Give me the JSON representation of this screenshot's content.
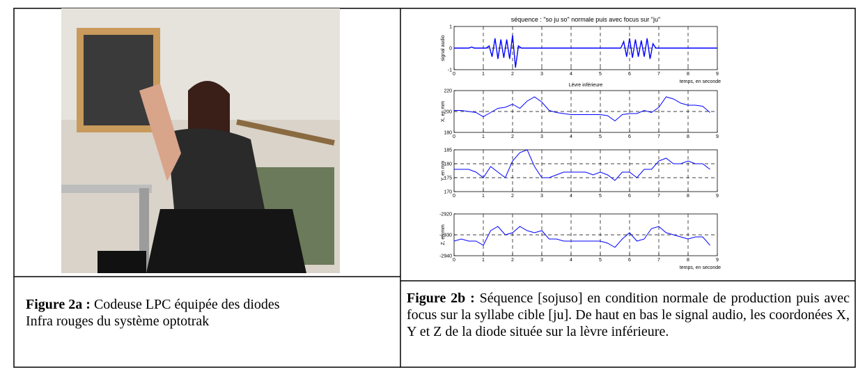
{
  "figure_2a": {
    "label": "Figure 2a :",
    "text_lines": [
      "Codeuse LPC  équipée des diodes",
      "Infra rouges du système optotrak"
    ]
  },
  "figure_2b": {
    "label": "Figure 2b :",
    "text": "Séquence [sojuso] en condition normale de production puis avec focus sur la syllabe cible [ju]. De haut en bas le signal audio, les coordonées X, Y et Z de la diode située sur la lèvre inférieure.",
    "title": "séquence : \"so ju so\" normale puis avec focus sur \"ju\"",
    "x": [
      0,
      0.25,
      0.5,
      0.75,
      1,
      1.25,
      1.5,
      1.75,
      2,
      2.25,
      2.5,
      2.75,
      3,
      3.25,
      3.5,
      3.75,
      4,
      4.25,
      4.5,
      4.75,
      5,
      5.25,
      5.5,
      5.75,
      6,
      6.25,
      6.5,
      6.75,
      7,
      7.25,
      7.5,
      7.75,
      8,
      8.25,
      8.5,
      8.75
    ],
    "subplots": [
      {
        "ylabel": "signal audio",
        "xlabel": "temps, en seconde",
        "xlim": [
          0,
          9
        ],
        "xticks": [
          0,
          1,
          2,
          3,
          4,
          5,
          6,
          7,
          8,
          9
        ],
        "ylim": [
          -1,
          1
        ],
        "yticks": [
          -1,
          0,
          1
        ],
        "grid": true,
        "color": "#0000ff",
        "x": [
          0,
          0.1,
          0.2,
          0.3,
          0.4,
          0.5,
          0.6,
          0.7,
          0.8,
          0.9,
          1,
          1.1,
          1.2,
          1.3,
          1.4,
          1.5,
          1.6,
          1.7,
          1.8,
          1.9,
          2,
          2.1,
          2.2,
          2.3,
          2.4,
          2.5,
          2.6,
          2.7,
          2.8,
          2.9,
          3,
          3.1,
          3.2,
          3.3,
          3.4,
          3.5,
          3.6,
          3.7,
          3.8,
          3.9,
          4,
          4.1,
          4.2,
          4.3,
          4.4,
          4.5,
          4.6,
          4.7,
          4.8,
          4.9,
          5,
          5.1,
          5.2,
          5.3,
          5.4,
          5.5,
          5.6,
          5.7,
          5.8,
          5.9,
          6,
          6.1,
          6.2,
          6.3,
          6.4,
          6.5,
          6.6,
          6.7,
          6.8,
          6.9,
          7,
          7.1,
          7.2,
          7.3,
          7.4,
          7.5,
          7.6,
          7.7,
          7.8,
          7.9,
          8,
          8.1,
          8.2,
          8.3,
          8.4,
          8.5,
          8.6,
          8.7,
          8.8,
          8.9,
          9
        ],
        "values": [
          0,
          0,
          0,
          0,
          0,
          0,
          0.05,
          0,
          0,
          0,
          0,
          0,
          0.1,
          -0.4,
          0.45,
          -0.5,
          0.4,
          -0.45,
          0.4,
          -0.5,
          0.6,
          -0.9,
          0.1,
          0,
          0,
          0,
          0,
          0,
          0,
          0,
          0,
          0,
          0,
          0,
          0,
          0,
          0,
          0,
          0,
          0,
          0,
          0,
          0,
          0,
          0,
          0,
          0,
          0,
          0,
          0,
          0,
          0,
          0,
          0,
          0,
          0,
          0,
          0,
          0.3,
          -0.4,
          0.45,
          -0.45,
          0.4,
          -0.4,
          0.35,
          -0.4,
          0.45,
          -0.5,
          0.2,
          0,
          0,
          0,
          0,
          0,
          0,
          0,
          0,
          0,
          0,
          0,
          0,
          0,
          0,
          0,
          0,
          0,
          0,
          0,
          0,
          0,
          0
        ]
      },
      {
        "title": "Lèvre inférieure",
        "ylabel": "X, en mm",
        "xlim": [
          0,
          9
        ],
        "xticks": [
          0,
          1,
          2,
          3,
          4,
          5,
          6,
          7,
          8,
          9
        ],
        "ylim": [
          180,
          220
        ],
        "yticks": [
          180,
          200,
          220
        ],
        "grid": true,
        "color": "#0000ff",
        "values": [
          201,
          201,
          200,
          199,
          195,
          199,
          203,
          204,
          207,
          203,
          210,
          214,
          209,
          201,
          199,
          198,
          197,
          197,
          197,
          197,
          197,
          196,
          191,
          197,
          198,
          198,
          201,
          199,
          204,
          214,
          212,
          208,
          206,
          206,
          205,
          199
        ]
      },
      {
        "ylabel": "Y, en mm",
        "xlim": [
          0,
          9
        ],
        "xticks": [
          0,
          1,
          2,
          3,
          4,
          5,
          6,
          7,
          8,
          9
        ],
        "ylim": [
          170,
          185
        ],
        "yticks": [
          170,
          175,
          180,
          185
        ],
        "grid": true,
        "color": "#0000ff",
        "values": [
          178,
          178,
          178,
          177,
          175,
          179,
          177,
          175,
          181,
          184,
          185,
          179,
          175,
          175,
          176,
          177,
          177,
          177,
          177,
          176,
          177,
          176,
          174,
          177,
          177,
          175,
          178,
          178,
          181,
          182,
          180,
          180,
          181,
          180,
          180,
          178
        ]
      },
      {
        "ylabel": "Z, en mm",
        "xlabel": "temps, en seconde",
        "xlim": [
          0,
          9
        ],
        "xticks": [
          0,
          1,
          2,
          3,
          4,
          5,
          6,
          7,
          8,
          9
        ],
        "ylim": [
          -2940,
          -2920
        ],
        "yticks": [
          -2940,
          -2930,
          -2920
        ],
        "grid": true,
        "color": "#0000ff",
        "values": [
          -2933,
          -2932,
          -2933,
          -2933,
          -2935,
          -2928,
          -2926,
          -2930,
          -2929,
          -2926,
          -2928,
          -2929,
          -2928,
          -2932,
          -2932,
          -2933,
          -2933,
          -2933,
          -2933,
          -2933,
          -2933,
          -2934,
          -2936,
          -2932,
          -2929,
          -2933,
          -2932,
          -2927,
          -2926,
          -2929,
          -2930,
          -2931,
          -2932,
          -2931,
          -2931,
          -2935
        ]
      }
    ]
  }
}
